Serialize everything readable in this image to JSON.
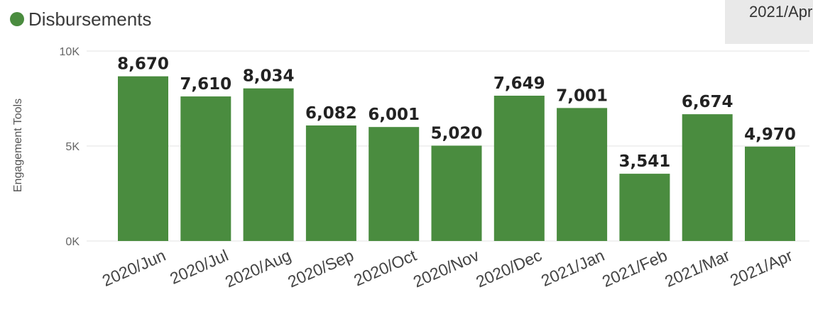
{
  "legend": {
    "label": "Disbursements",
    "color": "#4a8c3f"
  },
  "filter_chip": {
    "text": "2021/Apr"
  },
  "chart_data": {
    "type": "bar",
    "categories": [
      "2020/Jun",
      "2020/Jul",
      "2020/Aug",
      "2020/Sep",
      "2020/Oct",
      "2020/Nov",
      "2020/Dec",
      "2021/Jan",
      "2021/Feb",
      "2021/Mar",
      "2021/Apr"
    ],
    "series": [
      {
        "name": "Disbursements",
        "values": [
          8670,
          7610,
          8034,
          6082,
          6001,
          5020,
          7649,
          7001,
          3541,
          6674,
          4970
        ]
      }
    ],
    "data_labels": [
      "8,670",
      "7,610",
      "8,034",
      "6,082",
      "6,001",
      "5,020",
      "7,649",
      "7,001",
      "3,541",
      "6,674",
      "4,970"
    ],
    "ylabel": "Engagement Tools",
    "ylim": [
      0,
      10000
    ],
    "yticks": [
      0,
      5000,
      10000
    ],
    "ytick_labels": [
      "0K",
      "5K",
      "10K"
    ],
    "grid": true,
    "legend_position": "top-left",
    "bar_color": "#4a8c3f"
  }
}
